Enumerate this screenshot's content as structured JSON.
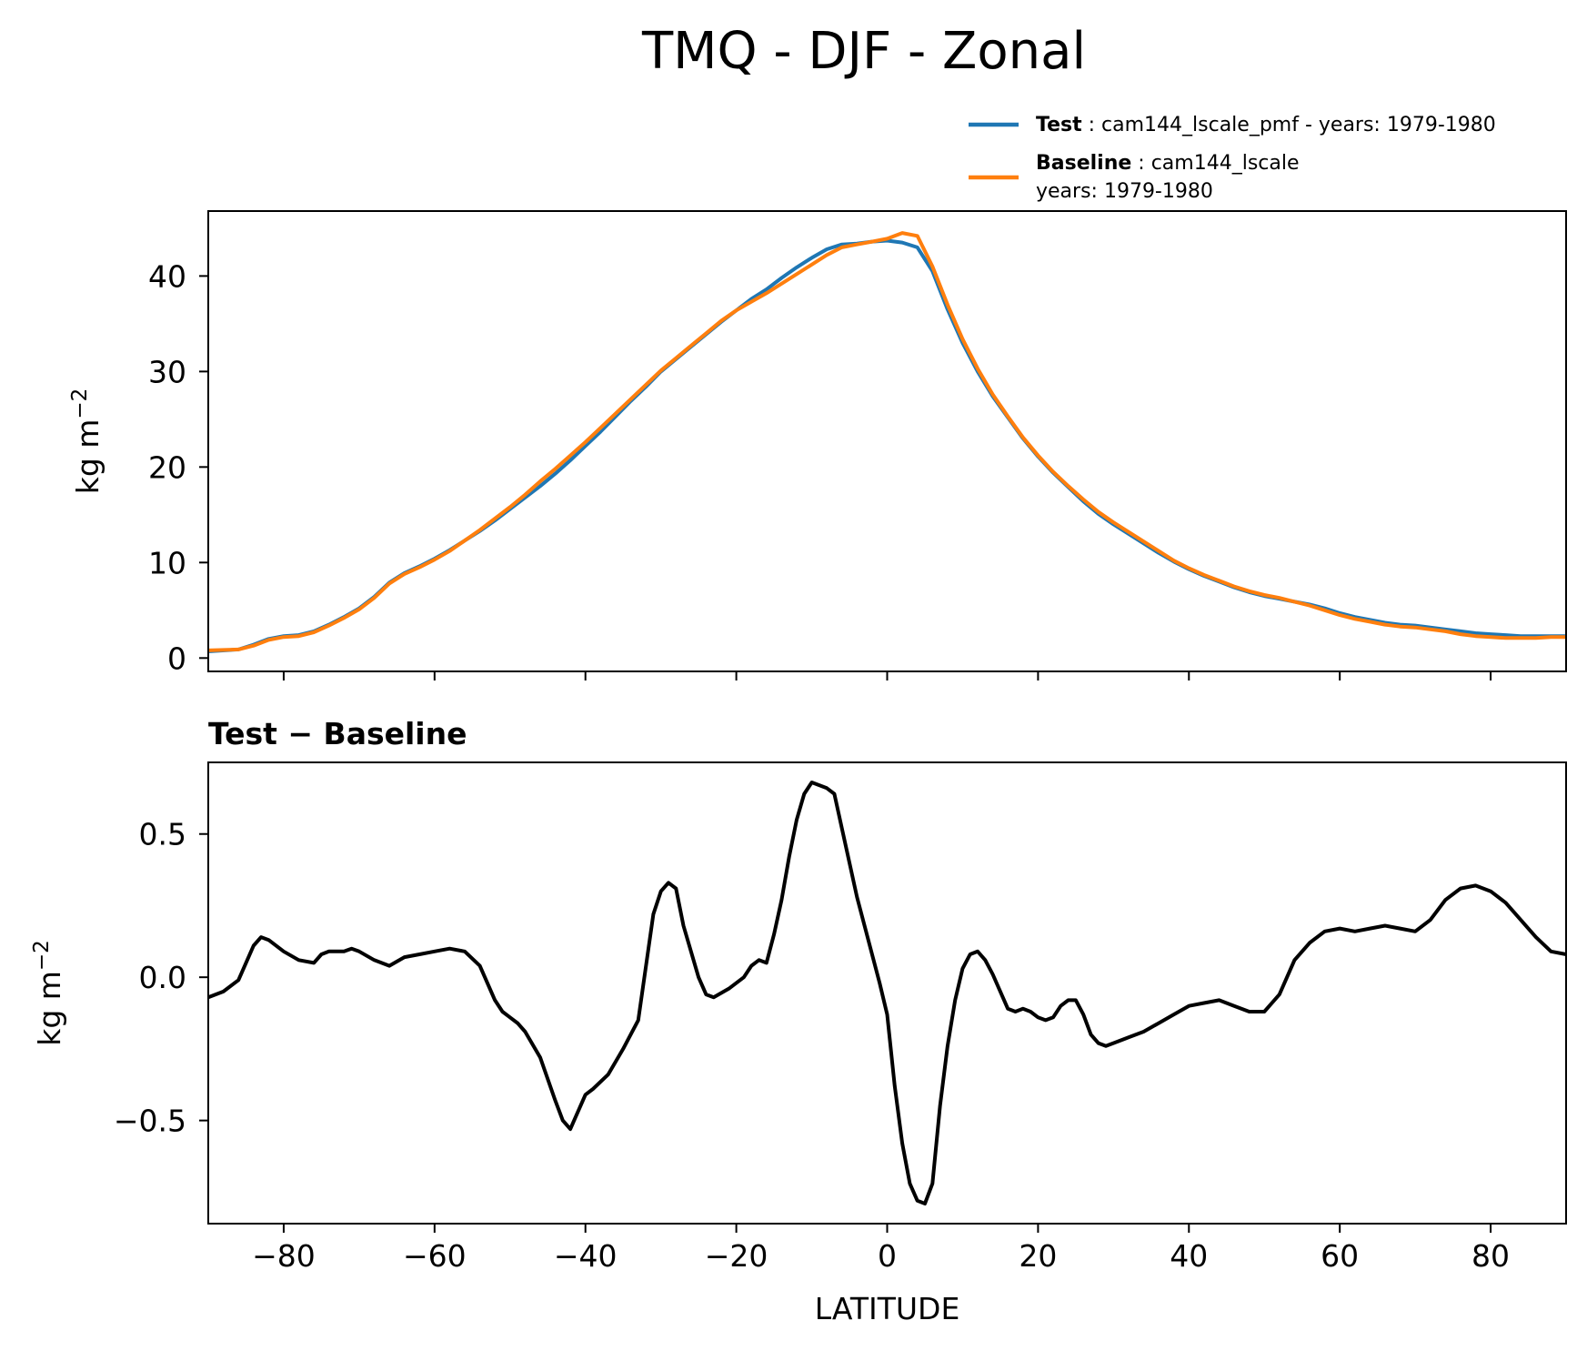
{
  "figure_title": "TMQ - DJF - Zonal",
  "colors": {
    "test": "#1f77b4",
    "baseline": "#ff7f0e",
    "diff": "#000000"
  },
  "legend": {
    "test_name": "Test",
    "test_rest": ": cam144_lscale_pmf - years: 1979-1980",
    "baseline_name": "Baseline",
    "baseline_rest": ": cam144_lscale",
    "baseline_line2": "years: 1979-1980"
  },
  "chart_data": [
    {
      "type": "line",
      "title": "",
      "xlabel": "",
      "ylabel_base": "kg m",
      "ylabel_exp": "−2",
      "xlim": [
        -90,
        90
      ],
      "ylim": [
        -1.4,
        46.8
      ],
      "xticks": [
        -80,
        -60,
        -40,
        -20,
        0,
        20,
        40,
        60,
        80
      ],
      "yticks": [
        0,
        10,
        20,
        30,
        40
      ],
      "ytick_labels": [
        "0",
        "10",
        "20",
        "30",
        "40"
      ],
      "legend_position": "upper-right, above axes",
      "series": [
        {
          "name": "Test",
          "x": [
            -90,
            -86,
            -84,
            -82,
            -80,
            -78,
            -76,
            -74,
            -72,
            -70,
            -68,
            -66,
            -64,
            -62,
            -60,
            -58,
            -56,
            -54,
            -52,
            -50,
            -48,
            -46,
            -44,
            -42,
            -40,
            -38,
            -36,
            -34,
            -32,
            -30,
            -28,
            -26,
            -24,
            -22,
            -20,
            -18,
            -16,
            -14,
            -12,
            -10,
            -8,
            -6,
            -4,
            -2,
            0,
            2,
            4,
            6,
            8,
            10,
            12,
            14,
            16,
            18,
            20,
            22,
            24,
            26,
            28,
            30,
            32,
            34,
            36,
            38,
            40,
            42,
            44,
            46,
            48,
            50,
            52,
            54,
            56,
            58,
            60,
            62,
            64,
            66,
            68,
            70,
            72,
            74,
            76,
            78,
            80,
            82,
            84,
            86,
            88,
            90
          ],
          "y": [
            0.7,
            0.9,
            1.4,
            2.0,
            2.3,
            2.4,
            2.8,
            3.5,
            4.3,
            5.2,
            6.4,
            7.9,
            8.9,
            9.6,
            10.4,
            11.3,
            12.3,
            13.3,
            14.4,
            15.6,
            16.8,
            18.0,
            19.3,
            20.7,
            22.2,
            23.7,
            25.3,
            26.9,
            28.4,
            30.0,
            31.3,
            32.6,
            33.9,
            35.2,
            36.4,
            37.6,
            38.6,
            39.8,
            40.9,
            41.9,
            42.8,
            43.3,
            43.4,
            43.6,
            43.7,
            43.5,
            43.0,
            40.5,
            36.5,
            33.0,
            30.0,
            27.4,
            25.2,
            23.0,
            21.1,
            19.4,
            17.9,
            16.4,
            15.1,
            14.0,
            13.0,
            12.0,
            11.0,
            10.1,
            9.3,
            8.6,
            8.0,
            7.4,
            6.9,
            6.5,
            6.2,
            5.9,
            5.6,
            5.2,
            4.7,
            4.3,
            4.0,
            3.7,
            3.5,
            3.4,
            3.2,
            3.0,
            2.8,
            2.6,
            2.5,
            2.4,
            2.3,
            2.3,
            2.3,
            2.3
          ]
        },
        {
          "name": "Baseline",
          "x": [
            -90,
            -86,
            -84,
            -82,
            -80,
            -78,
            -76,
            -74,
            -72,
            -70,
            -68,
            -66,
            -64,
            -62,
            -60,
            -58,
            -56,
            -54,
            -52,
            -50,
            -48,
            -46,
            -44,
            -42,
            -40,
            -38,
            -36,
            -34,
            -32,
            -30,
            -28,
            -26,
            -24,
            -22,
            -20,
            -18,
            -16,
            -14,
            -12,
            -10,
            -8,
            -6,
            -4,
            -2,
            0,
            2,
            4,
            6,
            8,
            10,
            12,
            14,
            16,
            18,
            20,
            22,
            24,
            26,
            28,
            30,
            32,
            34,
            36,
            38,
            40,
            42,
            44,
            46,
            48,
            50,
            52,
            54,
            56,
            58,
            60,
            62,
            64,
            66,
            68,
            70,
            72,
            74,
            76,
            78,
            80,
            82,
            84,
            86,
            88,
            90
          ],
          "y": [
            0.8,
            0.9,
            1.3,
            1.9,
            2.2,
            2.3,
            2.7,
            3.4,
            4.2,
            5.1,
            6.3,
            7.8,
            8.8,
            9.5,
            10.3,
            11.2,
            12.3,
            13.4,
            14.6,
            15.8,
            17.1,
            18.5,
            19.8,
            21.2,
            22.6,
            24.1,
            25.6,
            27.1,
            28.6,
            30.1,
            31.4,
            32.7,
            34.0,
            35.3,
            36.4,
            37.3,
            38.2,
            39.2,
            40.2,
            41.2,
            42.2,
            43.0,
            43.3,
            43.6,
            43.9,
            44.5,
            44.2,
            41.0,
            37.0,
            33.4,
            30.3,
            27.6,
            25.3,
            23.1,
            21.2,
            19.5,
            18.0,
            16.6,
            15.3,
            14.2,
            13.2,
            12.2,
            11.2,
            10.2,
            9.4,
            8.7,
            8.1,
            7.5,
            7.0,
            6.6,
            6.3,
            5.9,
            5.5,
            5.0,
            4.5,
            4.1,
            3.8,
            3.5,
            3.3,
            3.2,
            3.0,
            2.8,
            2.5,
            2.3,
            2.2,
            2.1,
            2.1,
            2.1,
            2.2,
            2.2
          ]
        }
      ]
    },
    {
      "type": "line",
      "title": "Test − Baseline",
      "xlabel": "LATITUDE",
      "ylabel_base": "kg m",
      "ylabel_exp": "−2",
      "xlim": [
        -90,
        90
      ],
      "ylim": [
        -0.86,
        0.75
      ],
      "xticks": [
        -80,
        -60,
        -40,
        -20,
        0,
        20,
        40,
        60,
        80
      ],
      "xtick_labels": [
        "−80",
        "−60",
        "−40",
        "−20",
        "0",
        "20",
        "40",
        "60",
        "80"
      ],
      "yticks": [
        -0.5,
        0.0,
        0.5
      ],
      "ytick_labels": [
        "−0.5",
        "0.0",
        "0.5"
      ],
      "series": [
        {
          "name": "",
          "x": [
            -90,
            -88,
            -86,
            -85,
            -84,
            -83,
            -82,
            -80,
            -78,
            -76,
            -75,
            -74,
            -72,
            -71,
            -70,
            -68,
            -66,
            -64,
            -62,
            -60,
            -58,
            -56,
            -54,
            -52,
            -51,
            -50,
            -49,
            -48,
            -46,
            -44,
            -43,
            -42,
            -41,
            -40,
            -39,
            -37,
            -35,
            -33,
            -31,
            -30,
            -29,
            -28,
            -27,
            -25,
            -24,
            -23,
            -21,
            -19,
            -18,
            -17,
            -16,
            -15,
            -14,
            -13,
            -12,
            -11,
            -10,
            -8,
            -7,
            -6,
            -5,
            -4,
            -3,
            -2,
            -1,
            0,
            1,
            2,
            3,
            4,
            5,
            6,
            7,
            8,
            9,
            10,
            11,
            12,
            13,
            14,
            15,
            16,
            17,
            18,
            19,
            20,
            21,
            22,
            23,
            24,
            25,
            26,
            27,
            28,
            29,
            30,
            32,
            34,
            36,
            38,
            40,
            42,
            44,
            46,
            48,
            50,
            52,
            54,
            56,
            58,
            60,
            62,
            64,
            66,
            68,
            70,
            72,
            74,
            76,
            78,
            80,
            82,
            84,
            86,
            88,
            90
          ],
          "y": [
            -0.07,
            -0.05,
            -0.01,
            0.05,
            0.11,
            0.14,
            0.13,
            0.09,
            0.06,
            0.05,
            0.08,
            0.09,
            0.09,
            0.1,
            0.09,
            0.06,
            0.04,
            0.07,
            0.08,
            0.09,
            0.1,
            0.09,
            0.04,
            -0.08,
            -0.12,
            -0.14,
            -0.16,
            -0.19,
            -0.28,
            -0.43,
            -0.5,
            -0.53,
            -0.47,
            -0.41,
            -0.39,
            -0.34,
            -0.25,
            -0.15,
            0.22,
            0.3,
            0.33,
            0.31,
            0.18,
            0.0,
            -0.06,
            -0.07,
            -0.04,
            0.0,
            0.04,
            0.06,
            0.05,
            0.15,
            0.27,
            0.42,
            0.55,
            0.64,
            0.68,
            0.66,
            0.64,
            0.52,
            0.4,
            0.28,
            0.18,
            0.08,
            -0.02,
            -0.13,
            -0.38,
            -0.58,
            -0.72,
            -0.78,
            -0.79,
            -0.72,
            -0.45,
            -0.24,
            -0.08,
            0.03,
            0.08,
            0.09,
            0.06,
            0.01,
            -0.05,
            -0.11,
            -0.12,
            -0.11,
            -0.12,
            -0.14,
            -0.15,
            -0.14,
            -0.1,
            -0.08,
            -0.08,
            -0.13,
            -0.2,
            -0.23,
            -0.24,
            -0.23,
            -0.21,
            -0.19,
            -0.16,
            -0.13,
            -0.1,
            -0.09,
            -0.08,
            -0.1,
            -0.12,
            -0.12,
            -0.06,
            0.06,
            0.12,
            0.16,
            0.17,
            0.16,
            0.17,
            0.18,
            0.17,
            0.16,
            0.2,
            0.27,
            0.31,
            0.32,
            0.3,
            0.26,
            0.2,
            0.14,
            0.09,
            0.08
          ]
        }
      ]
    }
  ]
}
